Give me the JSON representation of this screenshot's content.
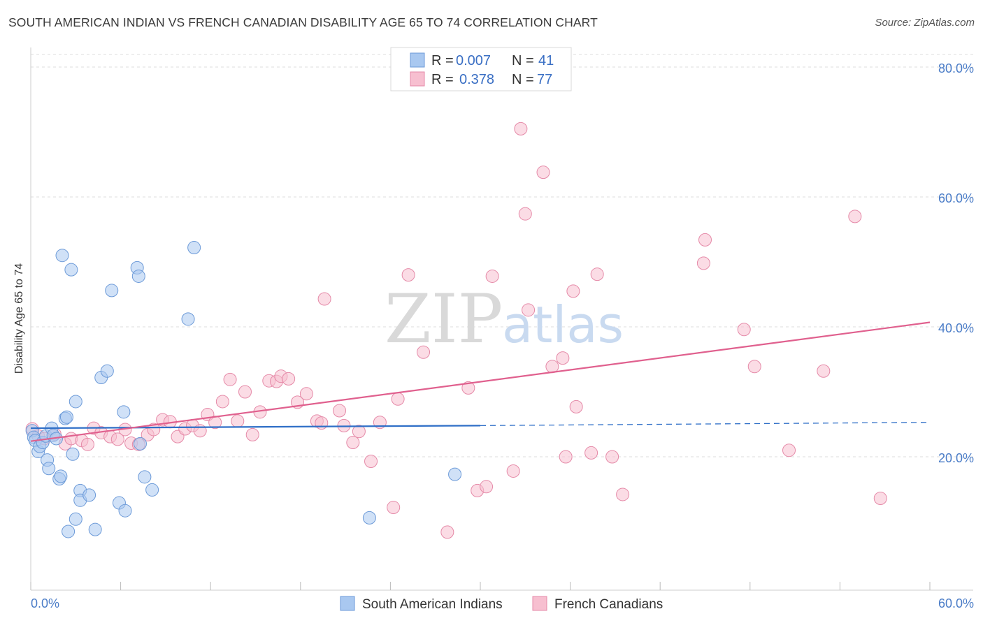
{
  "title": "SOUTH AMERICAN INDIAN VS FRENCH CANADIAN DISABILITY AGE 65 TO 74 CORRELATION CHART",
  "source": "Source: ZipAtlas.com",
  "watermark": {
    "zip": "ZIP",
    "atlas": "atlas"
  },
  "legend": {
    "r_label": "R =",
    "n_label": "N =",
    "entries": [
      {
        "r": "0.007",
        "n": "41",
        "color": "#a9c8f0",
        "stroke": "#6c9ad8"
      },
      {
        "r": "0.378",
        "n": "77",
        "color": "#f7bfd0",
        "stroke": "#e58aa8"
      }
    ]
  },
  "bottom_legend": [
    "South American Indians",
    "French Canadians"
  ],
  "chart_data": {
    "type": "scatter",
    "title": "SOUTH AMERICAN INDIAN VS FRENCH CANADIAN DISABILITY AGE 65 TO 74 CORRELATION CHART",
    "xlabel": "",
    "ylabel": "Disability Age 65 to 74",
    "xlim": [
      0,
      60
    ],
    "ylim": [
      0,
      80
    ],
    "x_tick_labels": [
      "0.0%",
      "60.0%"
    ],
    "y_ticks": [
      20,
      40,
      60,
      80
    ],
    "y_tick_labels": [
      "20.0%",
      "40.0%",
      "60.0%",
      "80.0%"
    ],
    "grid": "horizontal dashed",
    "legend_position": "top-center",
    "series": [
      {
        "name": "South American Indians",
        "color": "#a9c8f0",
        "stroke": "#6c9ad8",
        "line_color": "#2f6fc7",
        "trend": {
          "x0": 0,
          "y0": 24.4,
          "x1": 30,
          "y1": 24.8,
          "x_dash_end": 60,
          "y_dash_end": 25.3
        },
        "points": [
          [
            0.1,
            24.0
          ],
          [
            0.2,
            23.0
          ],
          [
            0.3,
            22.5
          ],
          [
            0.5,
            20.8
          ],
          [
            0.6,
            21.6
          ],
          [
            0.8,
            22.2
          ],
          [
            1.0,
            23.2
          ],
          [
            1.1,
            19.5
          ],
          [
            1.2,
            18.2
          ],
          [
            1.4,
            24.4
          ],
          [
            1.5,
            23.3
          ],
          [
            1.7,
            22.8
          ],
          [
            1.9,
            16.6
          ],
          [
            2.0,
            17.0
          ],
          [
            2.1,
            51.0
          ],
          [
            2.3,
            25.9
          ],
          [
            2.4,
            26.1
          ],
          [
            2.7,
            48.8
          ],
          [
            2.8,
            20.4
          ],
          [
            3.0,
            28.5
          ],
          [
            3.0,
            10.4
          ],
          [
            3.3,
            14.8
          ],
          [
            3.3,
            13.3
          ],
          [
            2.5,
            8.5
          ],
          [
            3.9,
            14.1
          ],
          [
            4.3,
            8.8
          ],
          [
            4.7,
            32.2
          ],
          [
            5.1,
            33.2
          ],
          [
            5.4,
            45.6
          ],
          [
            5.9,
            12.9
          ],
          [
            6.2,
            26.9
          ],
          [
            6.3,
            11.7
          ],
          [
            7.1,
            49.1
          ],
          [
            7.2,
            47.8
          ],
          [
            7.3,
            22.0
          ],
          [
            7.6,
            16.9
          ],
          [
            8.1,
            14.9
          ],
          [
            10.5,
            41.2
          ],
          [
            10.9,
            52.2
          ],
          [
            22.6,
            10.6
          ],
          [
            28.3,
            17.3
          ]
        ]
      },
      {
        "name": "French Canadians",
        "color": "#f7bfd0",
        "stroke": "#e58aa8",
        "line_color": "#e0608e",
        "trend": {
          "x0": 0,
          "y0": 22.4,
          "x1": 60,
          "y1": 40.7
        },
        "points": [
          [
            0.1,
            24.3
          ],
          [
            0.5,
            23.2
          ],
          [
            0.9,
            22.8
          ],
          [
            1.6,
            23.5
          ],
          [
            2.3,
            22.0
          ],
          [
            2.7,
            22.8
          ],
          [
            3.4,
            22.5
          ],
          [
            3.8,
            21.9
          ],
          [
            4.2,
            24.4
          ],
          [
            4.7,
            23.7
          ],
          [
            5.3,
            23.1
          ],
          [
            5.8,
            22.7
          ],
          [
            6.3,
            24.2
          ],
          [
            6.7,
            22.1
          ],
          [
            7.2,
            21.9
          ],
          [
            7.8,
            23.4
          ],
          [
            8.2,
            24.2
          ],
          [
            8.8,
            25.7
          ],
          [
            9.3,
            25.4
          ],
          [
            9.8,
            23.1
          ],
          [
            10.3,
            24.3
          ],
          [
            10.8,
            24.8
          ],
          [
            11.3,
            24.0
          ],
          [
            11.8,
            26.5
          ],
          [
            12.3,
            25.3
          ],
          [
            12.8,
            28.5
          ],
          [
            13.3,
            31.9
          ],
          [
            13.8,
            25.5
          ],
          [
            14.3,
            30.0
          ],
          [
            14.8,
            23.4
          ],
          [
            15.3,
            26.9
          ],
          [
            15.9,
            31.7
          ],
          [
            16.4,
            31.6
          ],
          [
            16.7,
            32.4
          ],
          [
            17.2,
            32.0
          ],
          [
            17.8,
            28.4
          ],
          [
            18.4,
            29.7
          ],
          [
            19.1,
            25.5
          ],
          [
            19.4,
            25.2
          ],
          [
            19.6,
            44.3
          ],
          [
            20.6,
            27.1
          ],
          [
            20.9,
            24.8
          ],
          [
            21.5,
            22.2
          ],
          [
            21.9,
            23.9
          ],
          [
            22.7,
            19.3
          ],
          [
            23.3,
            25.3
          ],
          [
            24.2,
            12.2
          ],
          [
            24.5,
            28.9
          ],
          [
            25.2,
            48.0
          ],
          [
            26.2,
            36.1
          ],
          [
            27.8,
            8.4
          ],
          [
            29.2,
            30.6
          ],
          [
            29.8,
            14.8
          ],
          [
            30.4,
            15.4
          ],
          [
            30.8,
            47.8
          ],
          [
            32.7,
            70.5
          ],
          [
            33.2,
            42.6
          ],
          [
            33.0,
            57.4
          ],
          [
            34.2,
            63.8
          ],
          [
            34.8,
            33.9
          ],
          [
            35.5,
            35.2
          ],
          [
            35.7,
            20.0
          ],
          [
            36.2,
            45.5
          ],
          [
            36.4,
            27.7
          ],
          [
            37.4,
            20.6
          ],
          [
            37.8,
            48.1
          ],
          [
            38.8,
            20.0
          ],
          [
            39.5,
            14.2
          ],
          [
            44.9,
            49.8
          ],
          [
            45.0,
            53.4
          ],
          [
            47.6,
            39.6
          ],
          [
            48.3,
            33.9
          ],
          [
            50.6,
            21.0
          ],
          [
            52.9,
            33.2
          ],
          [
            55.0,
            57.0
          ],
          [
            56.7,
            13.6
          ],
          [
            32.2,
            17.8
          ]
        ]
      }
    ]
  }
}
